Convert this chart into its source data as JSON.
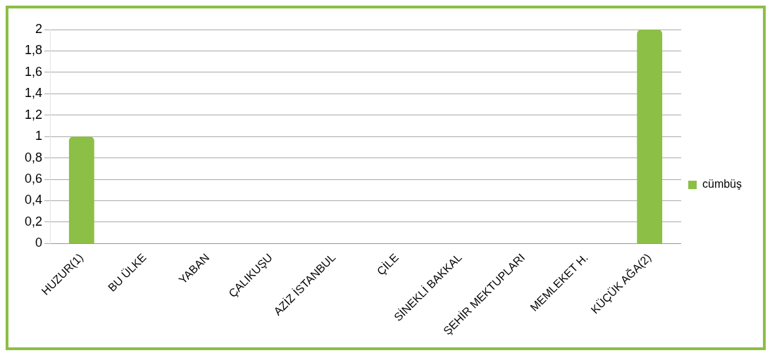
{
  "chart_data": {
    "type": "bar",
    "categories": [
      "HUZUR(1)",
      "BU ÜLKE",
      "YABAN",
      "ÇALIKUŞU",
      "AZİZ İSTANBUL",
      "ÇİLE",
      "SİNEKLİ BAKKAL",
      "ŞEHİR MEKTUPLARI",
      "MEMLEKET H.",
      "KÜÇÜK AĞA(2)"
    ],
    "series": [
      {
        "name": "cümbüş",
        "color": "#8cbf45",
        "values": [
          1,
          0,
          0,
          0,
          0,
          0,
          0,
          0,
          0,
          2
        ]
      }
    ],
    "ylim": [
      0,
      2
    ],
    "yticks": [
      0,
      {
        "value": 0.2,
        "label": "0,2"
      },
      {
        "value": 0.4,
        "label": "0,4"
      },
      {
        "value": 0.6,
        "label": "0,6"
      },
      {
        "value": 0.8,
        "label": "0,8"
      },
      1,
      {
        "value": 1.2,
        "label": "1,2"
      },
      {
        "value": 1.4,
        "label": "1,4"
      },
      {
        "value": 1.6,
        "label": "1,6"
      },
      {
        "value": 1.8,
        "label": "1,8"
      },
      2
    ],
    "grid": "y",
    "legend": "right"
  }
}
